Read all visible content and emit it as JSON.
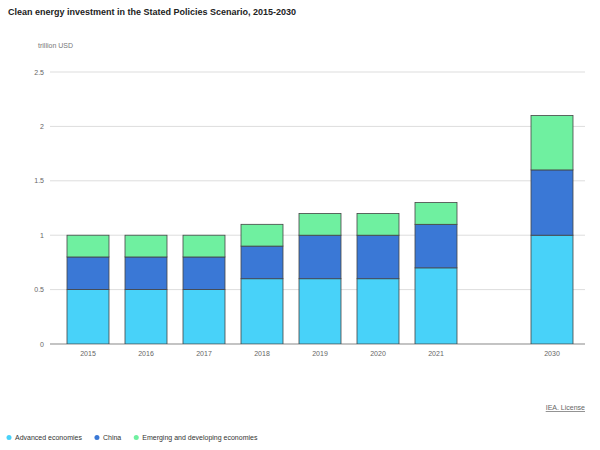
{
  "chart_data": {
    "type": "bar",
    "title": "Clean energy investment in the Stated Policies Scenario, 2015-2030",
    "y_label": "trillion USD",
    "source": "IEA. License",
    "categories": [
      "2015",
      "2016",
      "2017",
      "2018",
      "2019",
      "2020",
      "2021",
      null,
      "2030"
    ],
    "series": [
      {
        "name": "Advanced economies",
        "color": "#48d2f9",
        "values": [
          0.5,
          0.5,
          0.5,
          0.6,
          0.6,
          0.6,
          0.7,
          null,
          1.0
        ]
      },
      {
        "name": "China",
        "color": "#3a78d6",
        "values": [
          0.3,
          0.3,
          0.3,
          0.3,
          0.4,
          0.4,
          0.4,
          null,
          0.6
        ]
      },
      {
        "name": "Emerging and developing economies",
        "color": "#6ff0a0",
        "values": [
          0.2,
          0.2,
          0.2,
          0.2,
          0.2,
          0.2,
          0.2,
          null,
          0.5
        ]
      }
    ],
    "stacked": true,
    "ylim": [
      0,
      2.5
    ],
    "yticks": [
      0,
      0.5,
      1,
      1.5,
      2,
      2.5
    ],
    "grid": true,
    "legend": "bottom-left"
  }
}
